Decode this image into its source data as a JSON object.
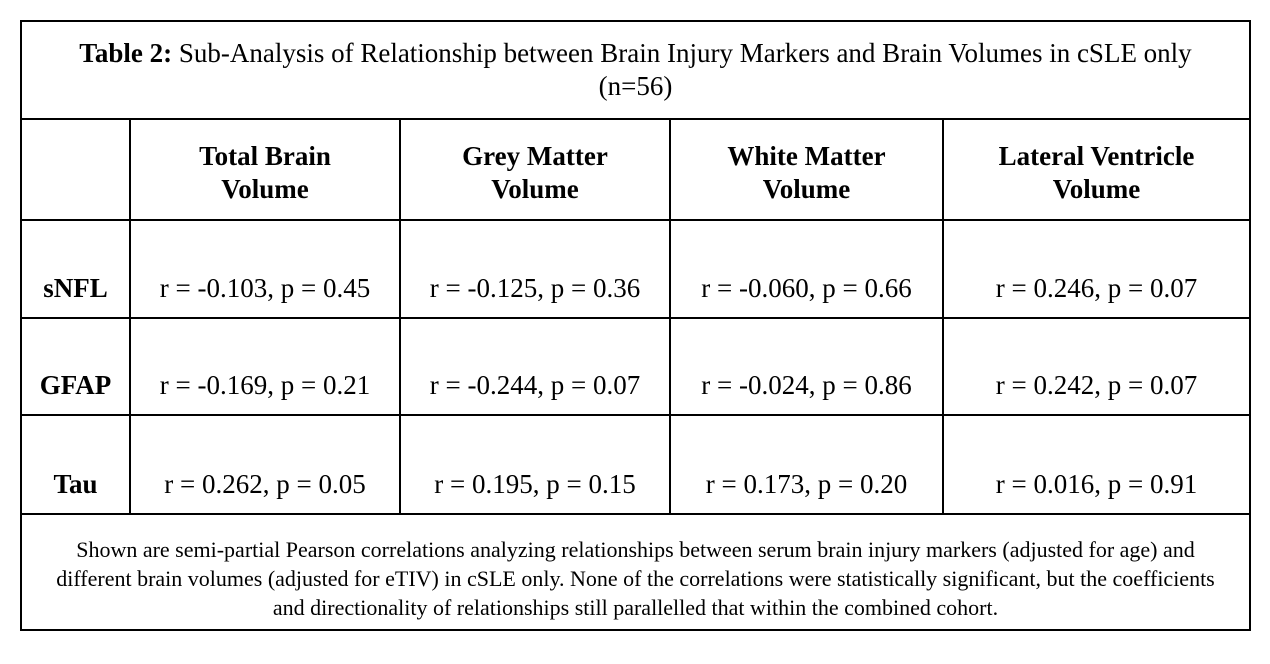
{
  "title": {
    "label": "Table 2:",
    "text": "Sub-Analysis of Relationship between Brain Injury Markers and Brain Volumes in cSLE only (n=56)"
  },
  "columns": [
    {
      "line1": "",
      "line2": ""
    },
    {
      "line1": "Total Brain",
      "line2": "Volume"
    },
    {
      "line1": "Grey Matter",
      "line2": "Volume"
    },
    {
      "line1": "White Matter",
      "line2": "Volume"
    },
    {
      "line1": "Lateral Ventricle",
      "line2": "Volume"
    }
  ],
  "rows": [
    {
      "label": "sNFL",
      "cells": [
        "r = -0.103, p = 0.45",
        "r = -0.125, p = 0.36",
        "r = -0.060, p = 0.66",
        "r = 0.246, p = 0.07"
      ]
    },
    {
      "label": "GFAP",
      "cells": [
        "r = -0.169, p = 0.21",
        "r = -0.244, p = 0.07",
        "r = -0.024, p = 0.86",
        "r = 0.242, p = 0.07"
      ]
    },
    {
      "label": "Tau",
      "cells": [
        "r = 0.262, p = 0.05",
        "r = 0.195, p = 0.15",
        "r = 0.173, p = 0.20",
        "r = 0.016, p = 0.91"
      ]
    }
  ],
  "footnote": "Shown are semi-partial Pearson correlations analyzing relationships between serum brain injury markers (adjusted for age) and different brain volumes (adjusted for eTIV) in cSLE only. None of the correlations were statistically significant, but the coefficients and directionality of relationships still parallelled that within the combined cohort."
}
